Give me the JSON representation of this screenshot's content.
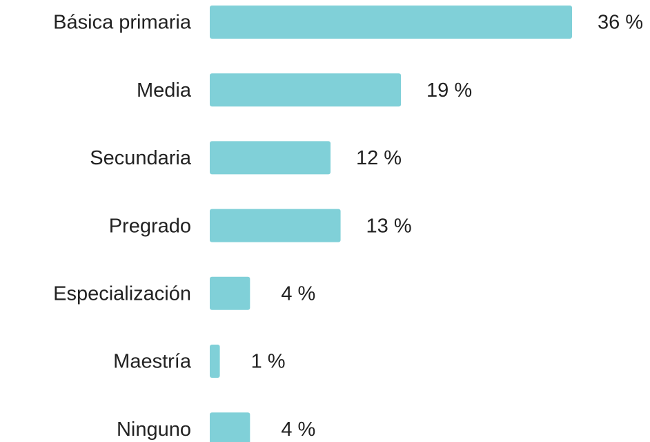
{
  "chart_data": {
    "type": "bar",
    "orientation": "horizontal",
    "categories": [
      "Básica primaria",
      "Media",
      "Secundaria",
      "Pregrado",
      "Especialización",
      "Maestría",
      "Ninguno"
    ],
    "values": [
      36,
      19,
      12,
      13,
      4,
      1,
      4
    ],
    "value_labels": [
      "36 %",
      "19 %",
      "12 %",
      "13 %",
      "4 %",
      "1 %",
      "4 %"
    ],
    "color": "#80d0d8"
  }
}
